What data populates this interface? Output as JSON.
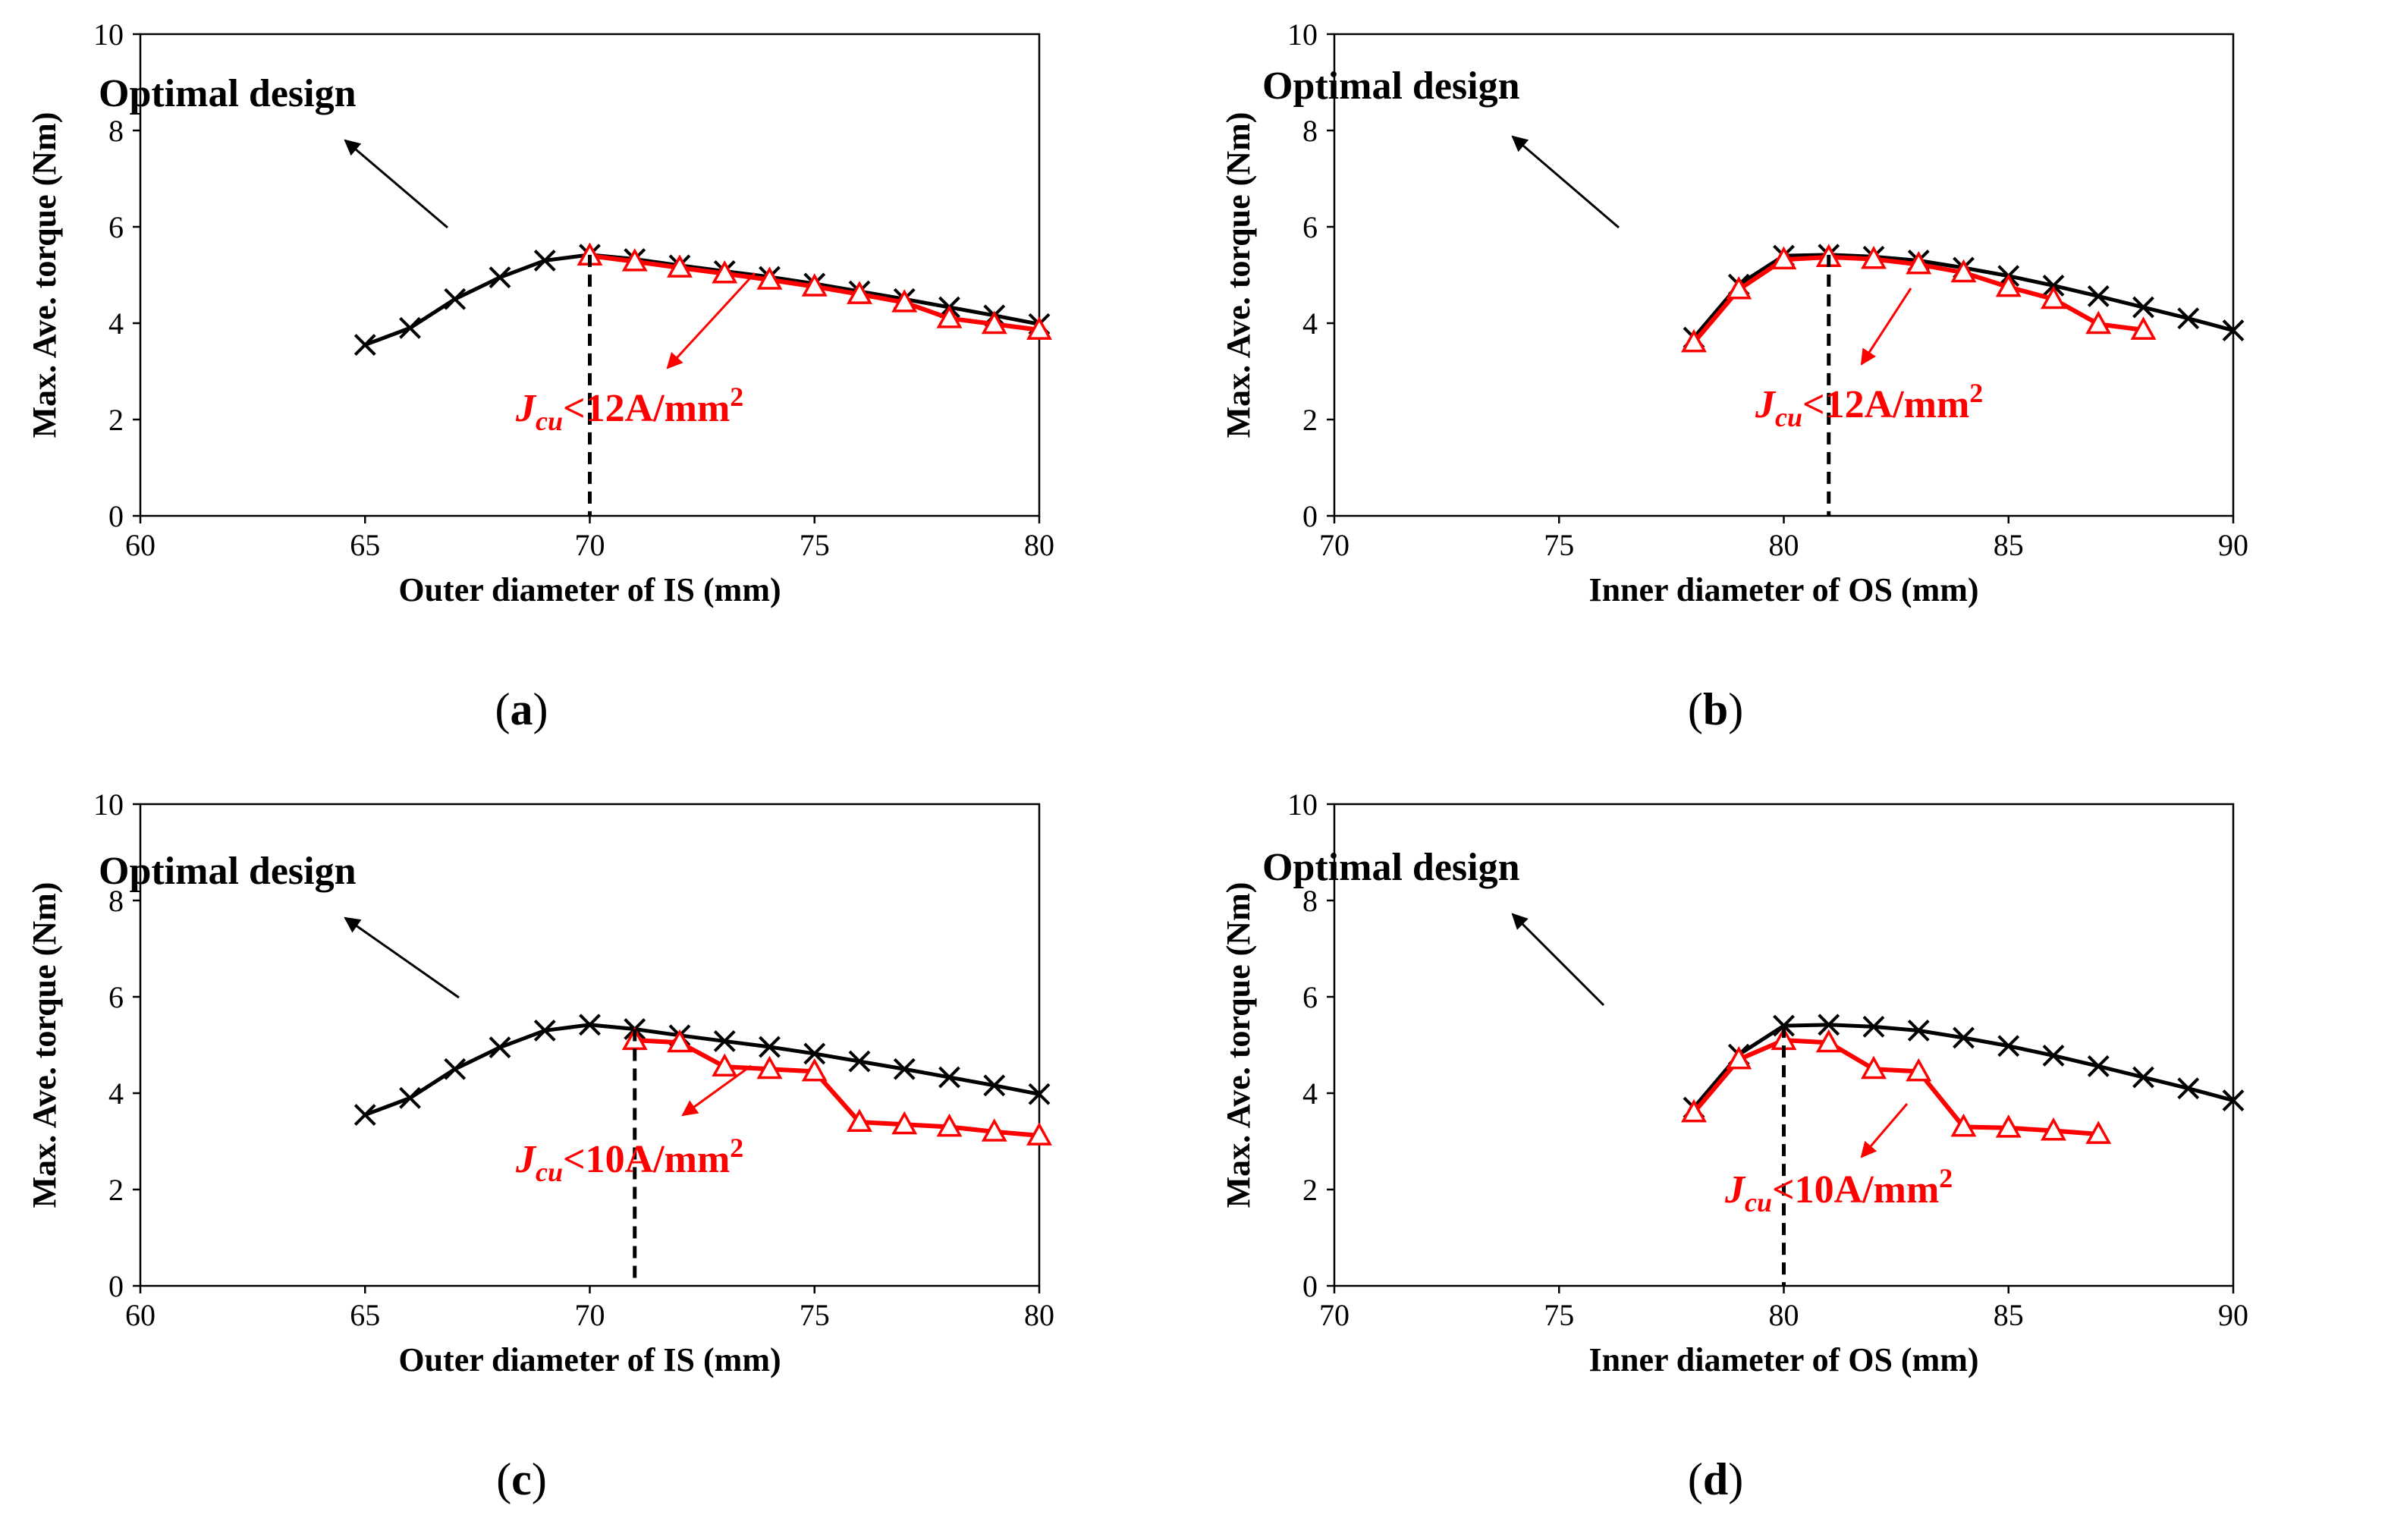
{
  "colors": {
    "black_series": "#000000",
    "red_series": "#ff0000",
    "axis": "#000000"
  },
  "chart_data": [
    {
      "id": "a",
      "type": "line",
      "caption": "(a)",
      "caption_letter": "a",
      "xlabel": "Outer diameter of IS (mm)",
      "ylabel": "Max. Ave. torque (Nm)",
      "xlim": [
        60,
        80
      ],
      "ylim": [
        0,
        10
      ],
      "xticks": [
        "60",
        "65",
        "70",
        "75",
        "80"
      ],
      "yticks": [
        "0",
        "2",
        "4",
        "6",
        "8",
        "10"
      ],
      "grid": false,
      "optimal_label": "Optimal design",
      "optimal_x": 70,
      "constraint_label": {
        "j": "J",
        "sub": "cu",
        "rest": "<12A/mm",
        "sup": "2"
      },
      "series": [
        {
          "marker": "x",
          "color": "#000000",
          "x": [
            65,
            66,
            67,
            68,
            69,
            70,
            71,
            72,
            73,
            74,
            75,
            76,
            77,
            78,
            79,
            80
          ],
          "y": [
            3.55,
            3.9,
            4.5,
            4.95,
            5.3,
            5.42,
            5.33,
            5.2,
            5.08,
            4.96,
            4.82,
            4.66,
            4.5,
            4.33,
            4.16,
            3.98
          ]
        },
        {
          "marker": "triangle",
          "color": "#ff0000",
          "x": [
            70,
            71,
            72,
            73,
            74,
            75,
            76,
            77,
            78,
            79,
            80
          ],
          "y": [
            5.4,
            5.28,
            5.15,
            5.03,
            4.9,
            4.76,
            4.6,
            4.43,
            4.1,
            3.98,
            3.86
          ]
        }
      ]
    },
    {
      "id": "b",
      "type": "line",
      "caption": "(b)",
      "caption_letter": "b",
      "xlabel": "Inner diameter of OS (mm)",
      "ylabel": "Max. Ave. torque (Nm)",
      "xlim": [
        70,
        90
      ],
      "ylim": [
        0,
        10
      ],
      "xticks": [
        "70",
        "75",
        "80",
        "85",
        "90"
      ],
      "yticks": [
        "0",
        "2",
        "4",
        "6",
        "8",
        "10"
      ],
      "grid": false,
      "optimal_label": "Optimal design",
      "optimal_x": 81,
      "constraint_label": {
        "j": "J",
        "sub": "cu",
        "rest": "<12A/mm",
        "sup": "2"
      },
      "series": [
        {
          "marker": "x",
          "color": "#000000",
          "x": [
            78,
            79,
            80,
            81,
            82,
            83,
            84,
            85,
            86,
            87,
            88,
            89,
            90
          ],
          "y": [
            3.7,
            4.8,
            5.4,
            5.42,
            5.38,
            5.3,
            5.15,
            4.98,
            4.78,
            4.56,
            4.33,
            4.1,
            3.85
          ]
        },
        {
          "marker": "triangle",
          "color": "#ff0000",
          "x": [
            78,
            79,
            80,
            81,
            82,
            83,
            84,
            85,
            86,
            87,
            88
          ],
          "y": [
            3.6,
            4.7,
            5.32,
            5.37,
            5.33,
            5.22,
            5.05,
            4.75,
            4.5,
            3.98,
            3.86
          ]
        }
      ]
    },
    {
      "id": "c",
      "type": "line",
      "caption": "(c)",
      "caption_letter": "c",
      "xlabel": "Outer diameter of IS (mm)",
      "ylabel": "Max. Ave. torque (Nm)",
      "xlim": [
        60,
        80
      ],
      "ylim": [
        0,
        10
      ],
      "xticks": [
        "60",
        "65",
        "70",
        "75",
        "80"
      ],
      "yticks": [
        "0",
        "2",
        "4",
        "6",
        "8",
        "10"
      ],
      "grid": false,
      "optimal_label": "Optimal design",
      "optimal_x": 71,
      "constraint_label": {
        "j": "J",
        "sub": "cu",
        "rest": "<10A/mm",
        "sup": "2"
      },
      "series": [
        {
          "marker": "x",
          "color": "#000000",
          "x": [
            65,
            66,
            67,
            68,
            69,
            70,
            71,
            72,
            73,
            74,
            75,
            76,
            77,
            78,
            79,
            80
          ],
          "y": [
            3.55,
            3.9,
            4.5,
            4.95,
            5.3,
            5.42,
            5.33,
            5.2,
            5.08,
            4.96,
            4.82,
            4.66,
            4.5,
            4.33,
            4.16,
            3.98
          ]
        },
        {
          "marker": "triangle",
          "color": "#ff0000",
          "x": [
            71,
            72,
            73,
            74,
            75,
            76,
            77,
            78,
            79,
            80
          ],
          "y": [
            5.1,
            5.05,
            4.55,
            4.5,
            4.45,
            3.4,
            3.35,
            3.3,
            3.2,
            3.12
          ]
        }
      ]
    },
    {
      "id": "d",
      "type": "line",
      "caption": "(d)",
      "caption_letter": "d",
      "xlabel": "Inner diameter of OS (mm)",
      "ylabel": "Max. Ave. torque (Nm)",
      "xlim": [
        70,
        90
      ],
      "ylim": [
        0,
        10
      ],
      "xticks": [
        "70",
        "75",
        "80",
        "85",
        "90"
      ],
      "yticks": [
        "0",
        "2",
        "4",
        "6",
        "8",
        "10"
      ],
      "grid": false,
      "optimal_label": "Optimal design",
      "optimal_x": 80,
      "constraint_label": {
        "j": "J",
        "sub": "cu",
        "rest": "<10A/mm",
        "sup": "2"
      },
      "series": [
        {
          "marker": "x",
          "color": "#000000",
          "x": [
            78,
            79,
            80,
            81,
            82,
            83,
            84,
            85,
            86,
            87,
            88,
            89,
            90
          ],
          "y": [
            3.7,
            4.8,
            5.4,
            5.42,
            5.38,
            5.3,
            5.15,
            4.98,
            4.78,
            4.56,
            4.33,
            4.1,
            3.85
          ]
        },
        {
          "marker": "triangle",
          "color": "#ff0000",
          "x": [
            78,
            79,
            80,
            81,
            82,
            83,
            84,
            85,
            86,
            87
          ],
          "y": [
            3.6,
            4.7,
            5.1,
            5.05,
            4.5,
            4.45,
            3.3,
            3.28,
            3.22,
            3.15
          ]
        }
      ]
    }
  ]
}
